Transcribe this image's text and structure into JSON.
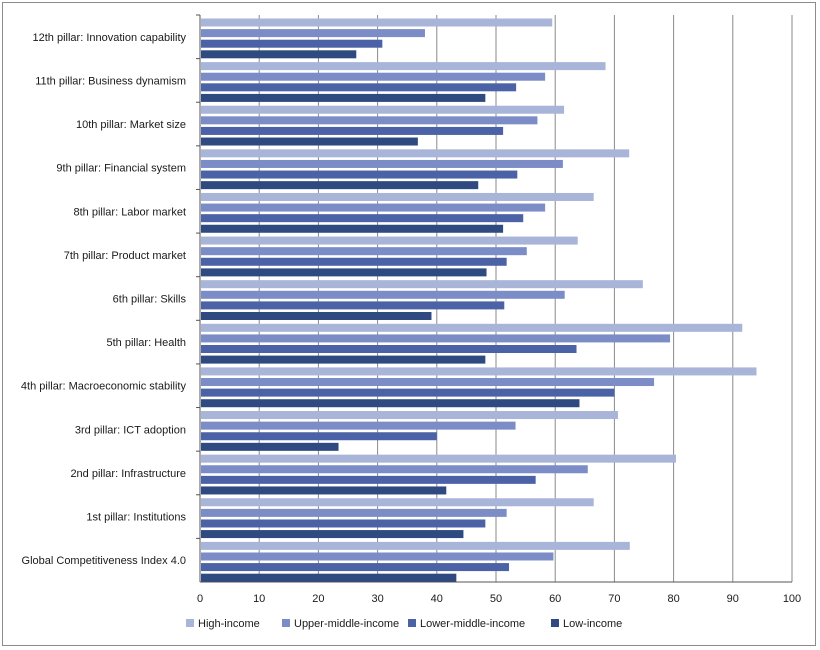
{
  "chart_data": {
    "type": "bar",
    "orientation": "horizontal",
    "categories": [
      "12th pillar: Innovation capability",
      "11th pillar: Business dynamism",
      "10th pillar: Market size",
      "9th pillar: Financial system",
      "8th pillar: Labor market",
      "7th pillar: Product market",
      "6th pillar: Skills",
      "5th pillar: Health",
      "4th pillar: Macroeconomic stability",
      "3rd pillar: ICT adoption",
      "2nd pillar: Infrastructure",
      "1st pillar: Institutions",
      "Global Competitiveness Index 4.0"
    ],
    "series": [
      {
        "name": "High-income",
        "color": "#a8b4d8",
        "values": [
          59.5,
          68.5,
          61.5,
          72.5,
          66.5,
          63.8,
          74.8,
          91.6,
          94.0,
          70.6,
          80.4,
          66.5,
          72.6
        ]
      },
      {
        "name": "Upper-middle-income",
        "color": "#7b8cc6",
        "values": [
          38.0,
          58.3,
          57.0,
          61.3,
          58.3,
          55.2,
          61.6,
          79.4,
          76.7,
          53.3,
          65.5,
          51.8,
          59.7
        ]
      },
      {
        "name": "Lower-middle-income",
        "color": "#4c62a6",
        "values": [
          30.8,
          53.4,
          51.2,
          53.6,
          54.6,
          51.8,
          51.4,
          63.6,
          70.0,
          40.0,
          56.7,
          48.2,
          52.2
        ]
      },
      {
        "name": "Low-income",
        "color": "#2f4a80",
        "values": [
          26.4,
          48.2,
          36.8,
          47.0,
          51.2,
          48.4,
          39.1,
          48.2,
          64.1,
          23.4,
          41.6,
          44.5,
          43.3
        ]
      }
    ],
    "xlim": [
      0,
      100
    ],
    "x_ticks": [
      "0",
      "10",
      "20",
      "30",
      "40",
      "50",
      "60",
      "70",
      "80",
      "90",
      "100"
    ],
    "xlabel": "",
    "ylabel": "",
    "title": "",
    "grid": "vertical",
    "legend_position": "bottom"
  }
}
